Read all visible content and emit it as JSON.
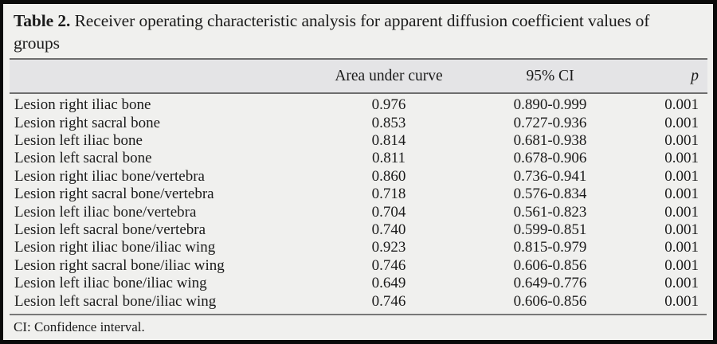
{
  "table": {
    "title_bold": "Table 2.",
    "title_rest": " Receiver operating characteristic analysis for apparent diffusion coefficient values of groups",
    "columns": {
      "label": "",
      "auc": "Area under curve",
      "ci": "95% CI",
      "p": "p"
    },
    "rows": [
      {
        "label": "Lesion right iliac bone",
        "auc": "0.976",
        "ci": "0.890-0.999",
        "p": "0.001"
      },
      {
        "label": "Lesion right sacral bone",
        "auc": "0.853",
        "ci": "0.727-0.936",
        "p": "0.001"
      },
      {
        "label": "Lesion left iliac bone",
        "auc": "0.814",
        "ci": "0.681-0.938",
        "p": "0.001"
      },
      {
        "label": "Lesion left sacral bone",
        "auc": "0.811",
        "ci": "0.678-0.906",
        "p": "0.001"
      },
      {
        "label": "Lesion right iliac bone/vertebra",
        "auc": "0.860",
        "ci": "0.736-0.941",
        "p": "0.001"
      },
      {
        "label": "Lesion right sacral bone/vertebra",
        "auc": "0.718",
        "ci": "0.576-0.834",
        "p": "0.001"
      },
      {
        "label": "Lesion left iliac bone/vertebra",
        "auc": "0.704",
        "ci": "0.561-0.823",
        "p": "0.001"
      },
      {
        "label": "Lesion left sacral bone/vertebra",
        "auc": "0.740",
        "ci": "0.599-0.851",
        "p": "0.001"
      },
      {
        "label": "Lesion right iliac bone/iliac wing",
        "auc": "0.923",
        "ci": "0.815-0.979",
        "p": "0.001"
      },
      {
        "label": "Lesion right sacral bone/iliac wing",
        "auc": "0.746",
        "ci": "0.606-0.856",
        "p": "0.001"
      },
      {
        "label": "Lesion left iliac bone/iliac wing",
        "auc": "0.649",
        "ci": "0.649-0.776",
        "p": "0.001"
      },
      {
        "label": "Lesion left sacral bone/iliac wing",
        "auc": "0.746",
        "ci": "0.606-0.856",
        "p": "0.001"
      }
    ],
    "footnote": "CI: Confidence interval."
  },
  "colors": {
    "frame_border": "#0a0a0a",
    "page_background": "#f0f0ee",
    "header_band_background": "#e4e4e6",
    "rule_gray": "#6e6e6e",
    "text": "#1b1b1b"
  }
}
